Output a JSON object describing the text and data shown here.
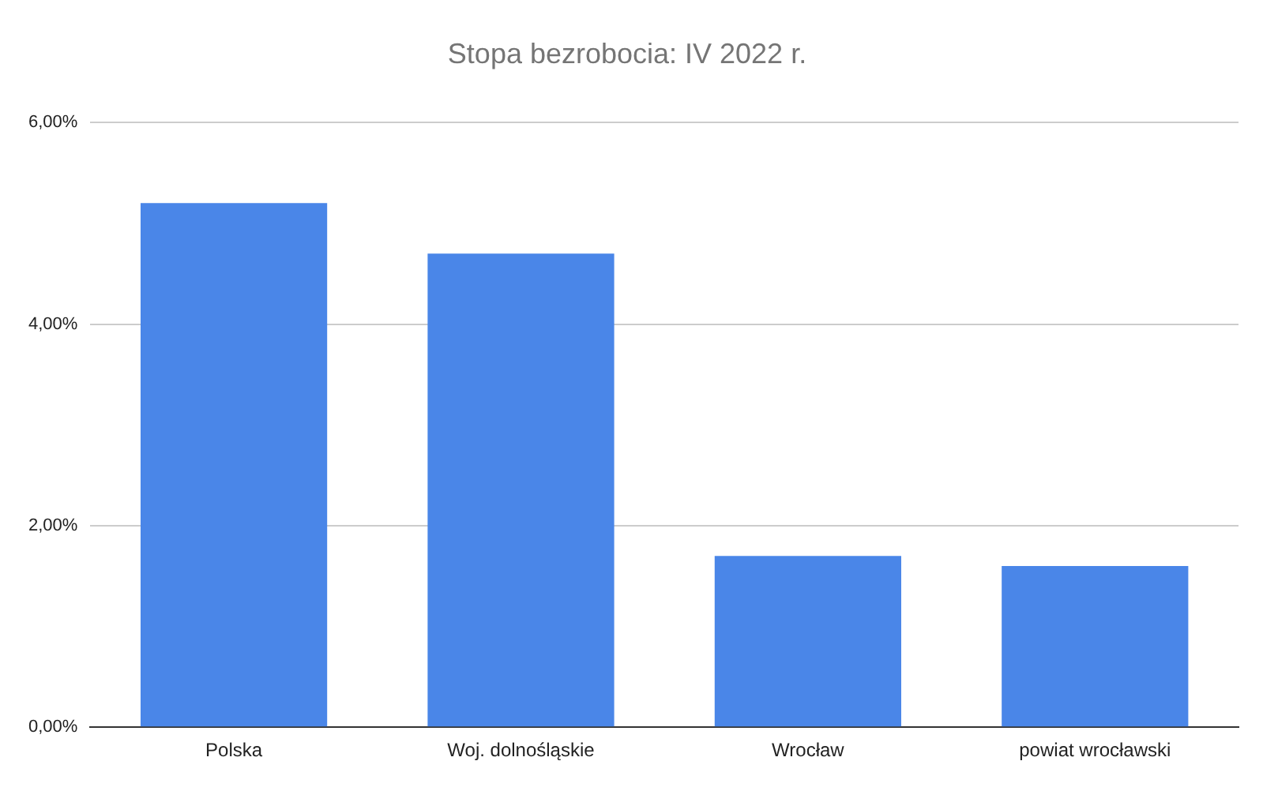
{
  "chart_data": {
    "type": "bar",
    "title": "Stopa bezrobocia: IV 2022 r.",
    "categories": [
      "Polska",
      "Woj. dolnośląskie",
      "Wrocław",
      "powiat wrocławski"
    ],
    "values": [
      5.2,
      4.7,
      1.7,
      1.6
    ],
    "color": "#4a86e8",
    "ylim": [
      0,
      6
    ],
    "yticks": [
      {
        "value": 0,
        "label": "0,00%"
      },
      {
        "value": 2,
        "label": "2,00%"
      },
      {
        "value": 4,
        "label": "4,00%"
      },
      {
        "value": 6,
        "label": "6,00%"
      }
    ],
    "grid": "y",
    "legend": false
  }
}
